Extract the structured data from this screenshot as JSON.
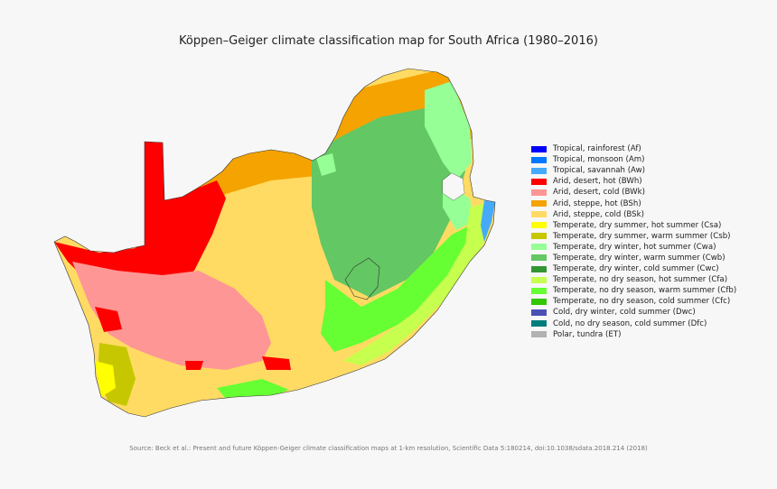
{
  "title": "Köppen–Geiger climate classification map for South Africa (1980–2016)",
  "legend": [
    {
      "label": "Tropical, rainforest (Af)",
      "color": "#0000fe"
    },
    {
      "label": "Tropical, monsoon (Am)",
      "color": "#0077ff"
    },
    {
      "label": "Tropical, savannah (Aw)",
      "color": "#46aafa"
    },
    {
      "label": "Arid, desert, hot (BWh)",
      "color": "#fe0000"
    },
    {
      "label": "Arid, desert, cold (BWk)",
      "color": "#fe9695"
    },
    {
      "label": "Arid, steppe, hot (BSh)",
      "color": "#f5a301"
    },
    {
      "label": "Arid, steppe, cold (BSk)",
      "color": "#ffdb63"
    },
    {
      "label": "Temperate, dry summer, hot summer (Csa)",
      "color": "#ffff00"
    },
    {
      "label": "Temperate, dry summer, warm summer (Csb)",
      "color": "#c6c700"
    },
    {
      "label": "Temperate, dry winter, hot summer (Cwa)",
      "color": "#96ff96"
    },
    {
      "label": "Temperate, dry winter, warm summer (Cwb)",
      "color": "#63c764"
    },
    {
      "label": "Temperate, dry winter, cold summer (Cwc)",
      "color": "#329633"
    },
    {
      "label": "Temperate, no dry season, hot summer (Cfa)",
      "color": "#c6ff4e"
    },
    {
      "label": "Temperate, no dry season, warm summer (Cfb)",
      "color": "#66ff33"
    },
    {
      "label": "Temperate, no dry season, cold summer (Cfc)",
      "color": "#33c701"
    },
    {
      "label": "Cold, dry winter, cold summer (Dwc)",
      "color": "#4c51b5"
    },
    {
      "label": "Cold, no dry season, cold summer (Dfc)",
      "color": "#007d7d"
    },
    {
      "label": "Polar, tundra (ET)",
      "color": "#b2b2b2"
    }
  ],
  "source": "Source: Beck et al.: Present and future Köppen-Geiger climate classification maps at 1-km resolution, Scientific Data 5:180214, doi:10.1038/sdata.2018.214 (2018)"
}
